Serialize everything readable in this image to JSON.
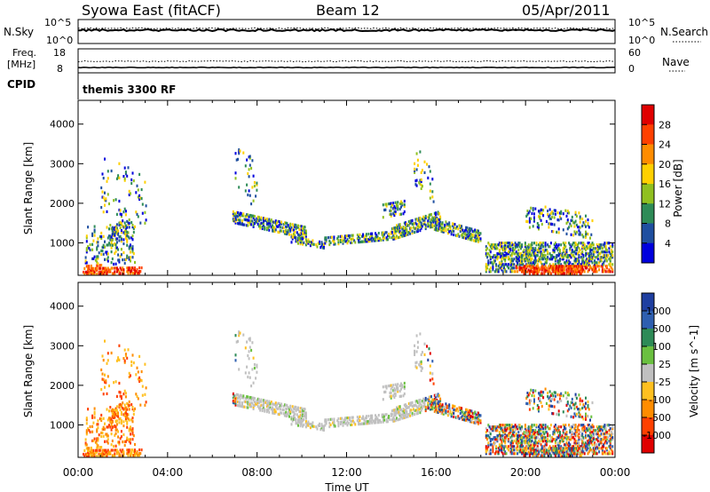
{
  "header": {
    "station": "Syowa East (fitACF)",
    "beam": "Beam 12",
    "date": "05/Apr/2011"
  },
  "strip1": {
    "left_label": "N.Sky",
    "left_ticks": [
      "10^5",
      "10^0"
    ],
    "right_label": "N.Search",
    "right_ticks": [
      "10^5",
      "10^0"
    ]
  },
  "strip2": {
    "left_label_1": "Freq.",
    "left_label_2": "[MHz]",
    "left_ticks": [
      "18",
      "8"
    ],
    "right_label": "Nave",
    "right_ticks": [
      "60",
      "0"
    ],
    "cpid_label": "CPID",
    "cpid_value": "themis 3300 RF"
  },
  "chart_data": [
    {
      "type": "heatmap",
      "panel": "power",
      "ylabel": "Slant Range [km]",
      "y_ticks": [
        "1000",
        "2000",
        "3000",
        "4000"
      ],
      "ylim": [
        180,
        4600
      ],
      "x_ticks": [
        "00:00",
        "04:00",
        "08:00",
        "12:00",
        "16:00",
        "20:00",
        "00:00"
      ],
      "xlim_hours": [
        0,
        24
      ],
      "colorbar_label": "Power [dB]",
      "colorbar_ticks": [
        "28",
        "24",
        "20",
        "16",
        "12",
        "8",
        "4"
      ],
      "colorbar_colors": [
        "#e00000",
        "#ff4000",
        "#ff8c00",
        "#ffd000",
        "#90c020",
        "#2e8b57",
        "#1f4fa0",
        "#0000dd"
      ]
    },
    {
      "type": "heatmap",
      "panel": "velocity",
      "ylabel": "Slant Range [km]",
      "y_ticks": [
        "1000",
        "2000",
        "3000",
        "4000"
      ],
      "ylim": [
        180,
        4600
      ],
      "x_ticks": [
        "00:00",
        "04:00",
        "08:00",
        "12:00",
        "16:00",
        "20:00",
        "00:00"
      ],
      "xlim_hours": [
        0,
        24
      ],
      "xlabel": "Time UT",
      "colorbar_label": "Velocity [m s^-1]",
      "colorbar_ticks": [
        "1000",
        "500",
        "100",
        "25",
        "-25",
        "-100",
        "-500",
        "-1000"
      ],
      "colorbar_colors": [
        "#1f3fa0",
        "#2f5fb0",
        "#2e8b57",
        "#6ac040",
        "#c0c0c0",
        "#ffc020",
        "#ff8c00",
        "#ff4000",
        "#e00000"
      ]
    }
  ]
}
